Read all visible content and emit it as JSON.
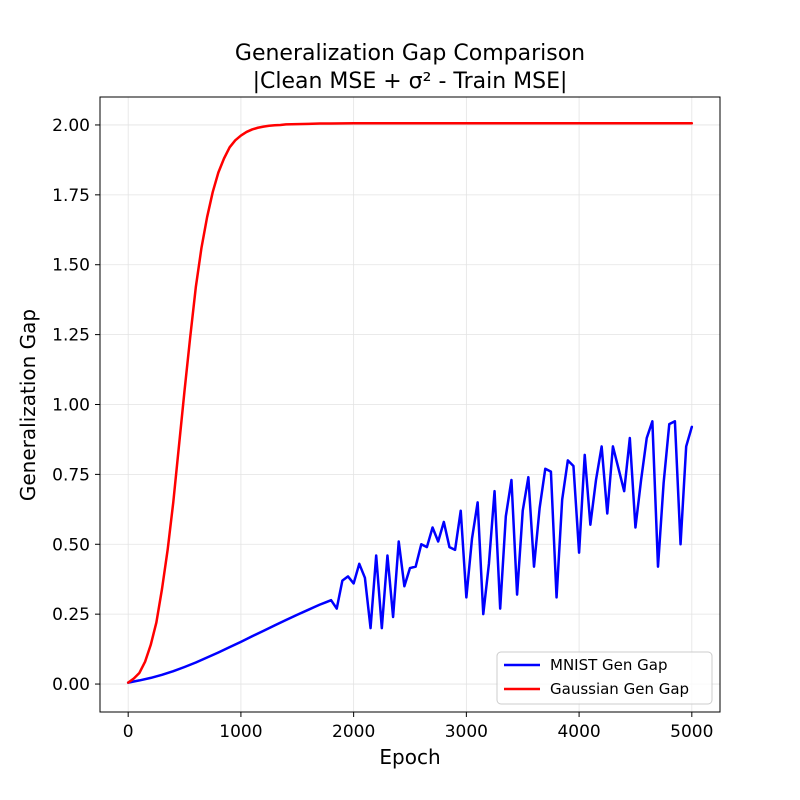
{
  "chart_data": {
    "type": "line",
    "title_lines": [
      "Generalization Gap Comparison",
      "|Clean MSE + σ² - Train MSE|"
    ],
    "xlabel": "Epoch",
    "ylabel": "Generalization Gap",
    "xlim": [
      -250,
      5250
    ],
    "ylim": [
      -0.1,
      2.1
    ],
    "xticks": [
      0,
      1000,
      2000,
      3000,
      4000,
      5000
    ],
    "xtick_labels": [
      "0",
      "1000",
      "2000",
      "3000",
      "4000",
      "5000"
    ],
    "yticks": [
      0.0,
      0.25,
      0.5,
      0.75,
      1.0,
      1.25,
      1.5,
      1.75,
      2.0
    ],
    "ytick_labels": [
      "0.00",
      "0.25",
      "0.50",
      "0.75",
      "1.00",
      "1.25",
      "1.50",
      "1.75",
      "2.00"
    ],
    "grid": true,
    "legend_position": "lower-right",
    "series": [
      {
        "name": "MNIST Gen Gap",
        "color": "#0000ff",
        "x": [
          0,
          100,
          200,
          300,
          400,
          500,
          600,
          700,
          800,
          900,
          1000,
          1100,
          1200,
          1300,
          1400,
          1500,
          1600,
          1650,
          1700,
          1750,
          1800,
          1850,
          1900,
          1950,
          2000,
          2050,
          2100,
          2150,
          2200,
          2250,
          2300,
          2350,
          2400,
          2450,
          2500,
          2550,
          2600,
          2650,
          2700,
          2750,
          2800,
          2850,
          2900,
          2950,
          3000,
          3050,
          3100,
          3150,
          3200,
          3250,
          3300,
          3350,
          3400,
          3450,
          3500,
          3550,
          3600,
          3650,
          3700,
          3750,
          3800,
          3850,
          3900,
          3950,
          4000,
          4050,
          4100,
          4150,
          4200,
          4250,
          4300,
          4350,
          4400,
          4450,
          4500,
          4550,
          4600,
          4650,
          4700,
          4750,
          4800,
          4850,
          4900,
          4950,
          5000
        ],
        "y": [
          0.005,
          0.013,
          0.022,
          0.033,
          0.046,
          0.061,
          0.077,
          0.095,
          0.113,
          0.132,
          0.151,
          0.171,
          0.19,
          0.21,
          0.229,
          0.248,
          0.266,
          0.275,
          0.284,
          0.292,
          0.3,
          0.27,
          0.37,
          0.385,
          0.36,
          0.43,
          0.38,
          0.2,
          0.46,
          0.2,
          0.46,
          0.24,
          0.51,
          0.35,
          0.415,
          0.42,
          0.5,
          0.49,
          0.56,
          0.51,
          0.58,
          0.49,
          0.48,
          0.62,
          0.31,
          0.52,
          0.65,
          0.25,
          0.43,
          0.69,
          0.27,
          0.6,
          0.73,
          0.32,
          0.62,
          0.74,
          0.42,
          0.63,
          0.77,
          0.76,
          0.31,
          0.66,
          0.8,
          0.78,
          0.47,
          0.82,
          0.57,
          0.73,
          0.85,
          0.61,
          0.85,
          0.77,
          0.69,
          0.88,
          0.56,
          0.73,
          0.88,
          0.94,
          0.42,
          0.72,
          0.93,
          0.94,
          0.5,
          0.85,
          0.92
        ]
      },
      {
        "name": "Gaussian Gen Gap",
        "color": "#ff0000",
        "x": [
          0,
          50,
          100,
          150,
          200,
          250,
          300,
          350,
          400,
          450,
          500,
          550,
          600,
          650,
          700,
          750,
          800,
          850,
          900,
          950,
          1000,
          1050,
          1100,
          1150,
          1200,
          1250,
          1300,
          1350,
          1400,
          1500,
          1600,
          1700,
          1800,
          2000,
          2500,
          3000,
          3500,
          4000,
          4500,
          5000
        ],
        "y": [
          0.005,
          0.02,
          0.04,
          0.08,
          0.14,
          0.22,
          0.34,
          0.48,
          0.65,
          0.85,
          1.05,
          1.24,
          1.42,
          1.56,
          1.67,
          1.76,
          1.83,
          1.88,
          1.92,
          1.945,
          1.962,
          1.975,
          1.984,
          1.99,
          1.994,
          1.997,
          1.999,
          2.0,
          2.002,
          2.003,
          2.004,
          2.005,
          2.005,
          2.006,
          2.006,
          2.006,
          2.006,
          2.006,
          2.006,
          2.006
        ]
      }
    ]
  }
}
